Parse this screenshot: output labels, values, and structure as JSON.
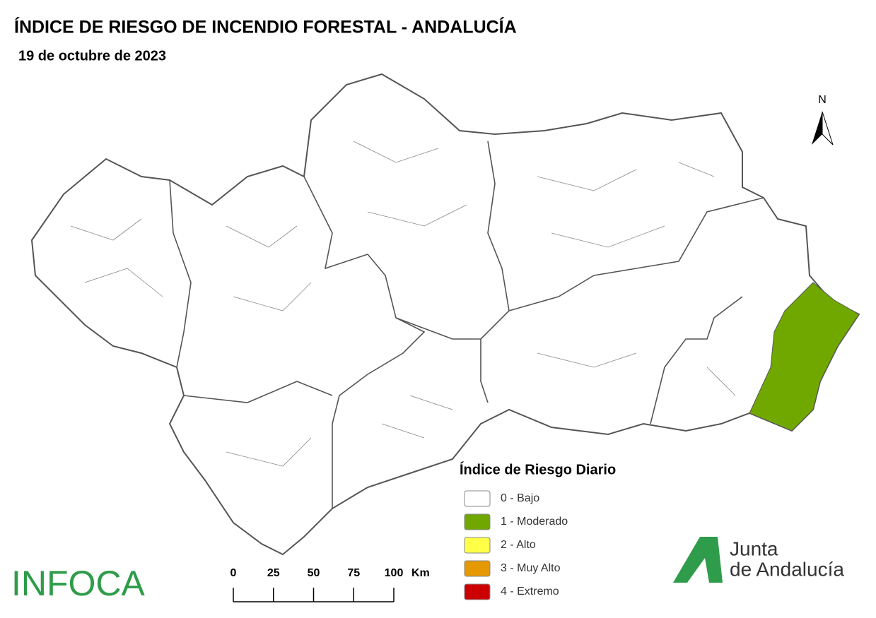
{
  "header": {
    "title": "ÍNDICE DE RIESGO DE INCENDIO FORESTAL - ANDALUCÍA",
    "date": "19 de octubre de 2023"
  },
  "map": {
    "north": "N"
  },
  "legend": {
    "title": "Índice de Riesgo Diario",
    "items": [
      {
        "label": "0 - Bajo",
        "color": "#ffffff"
      },
      {
        "label": "1 - Moderado",
        "color": "#70a800"
      },
      {
        "label": "2 - Alto",
        "color": "#ffff47"
      },
      {
        "label": "3 - Muy Alto",
        "color": "#e69800"
      },
      {
        "label": "4 - Extremo",
        "color": "#cc0000"
      }
    ]
  },
  "scale_bar": {
    "ticks": [
      0,
      25,
      50,
      75,
      100
    ],
    "unit": "Km"
  },
  "logos": {
    "infoca": "INFOCA",
    "junta": [
      "Junta",
      "de Andalucía"
    ]
  }
}
